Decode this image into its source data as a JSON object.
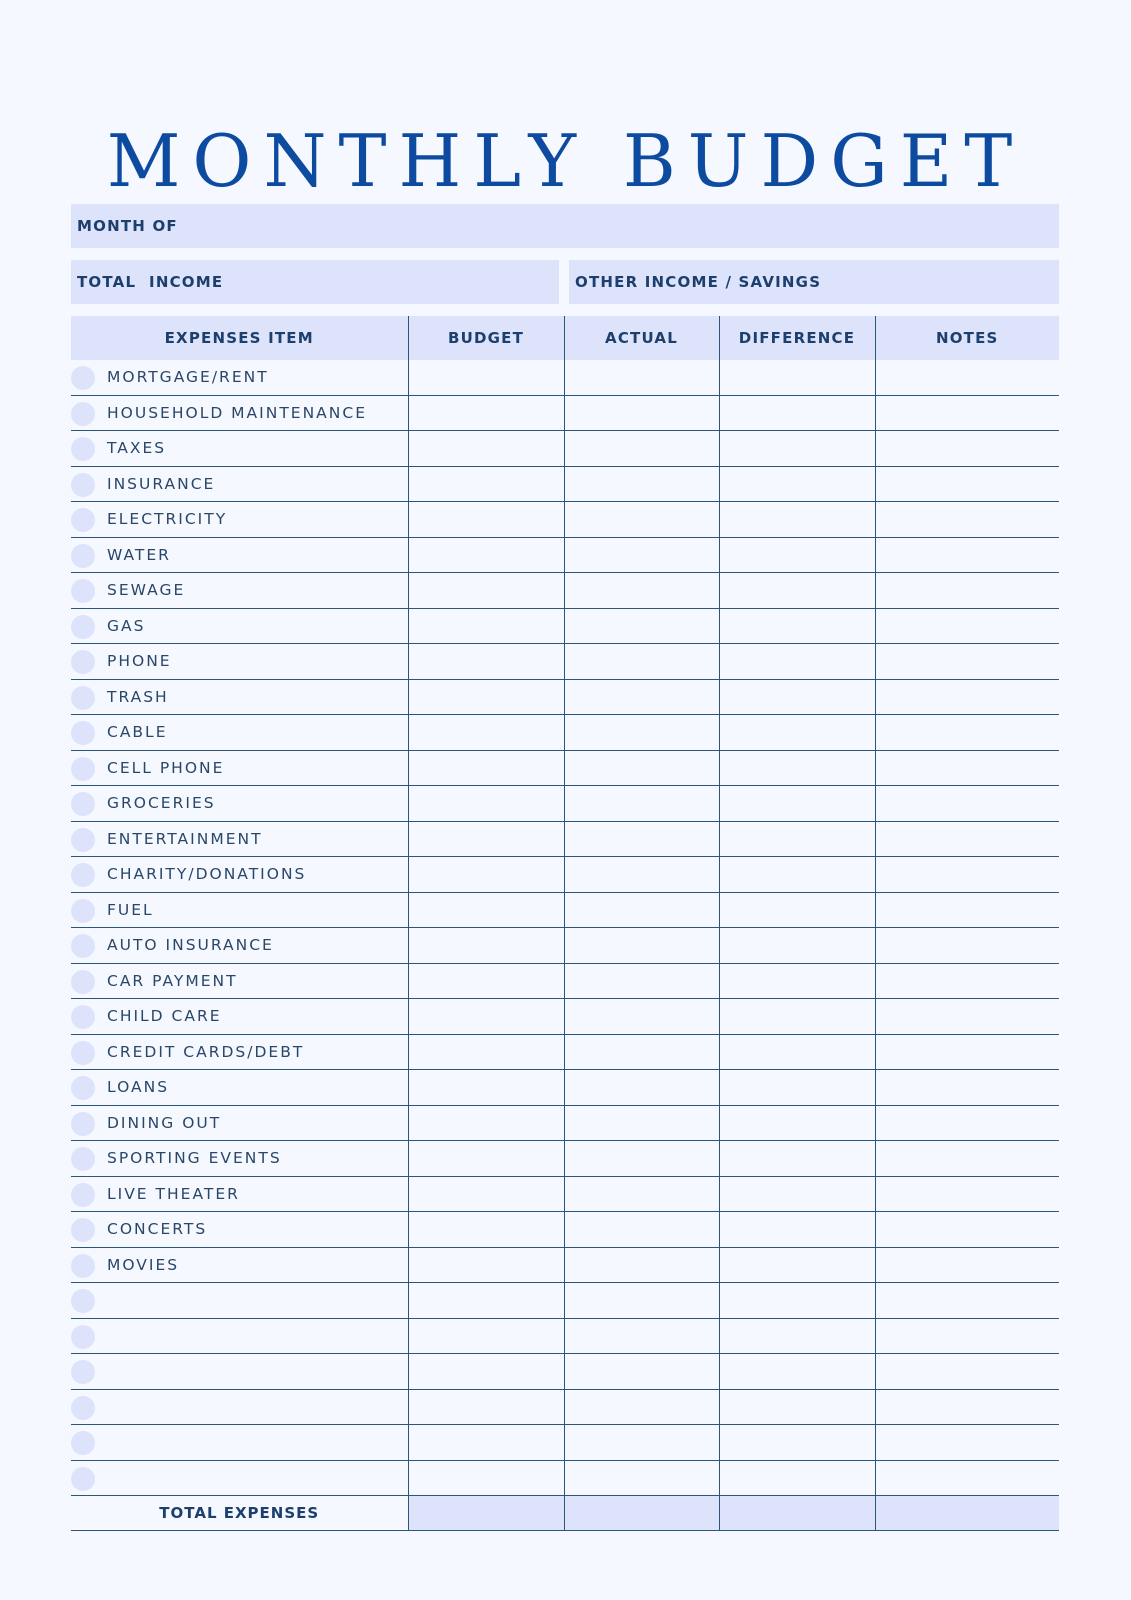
{
  "title": "MONTHLY BUDGET",
  "fields": {
    "month_of": "MONTH OF",
    "total_income": "TOTAL  INCOME",
    "other_income": "OTHER INCOME / SAVINGS"
  },
  "table": {
    "headers": [
      "EXPENSES ITEM",
      "BUDGET",
      "ACTUAL",
      "DIFFERENCE",
      "NOTES"
    ],
    "items": [
      "MORTGAGE/RENT",
      "HOUSEHOLD MAINTENANCE",
      "TAXES",
      "INSURANCE",
      "ELECTRICITY",
      "WATER",
      "SEWAGE",
      "GAS",
      "PHONE",
      "TRASH",
      "CABLE",
      "CELL PHONE",
      "GROCERIES",
      "ENTERTAINMENT",
      "CHARITY/DONATIONS",
      "FUEL",
      "AUTO INSURANCE",
      "CAR PAYMENT",
      "CHILD CARE",
      "CREDIT CARDS/DEBT",
      "LOANS",
      "DINING OUT",
      "SPORTING EVENTS",
      "LIVE THEATER",
      "CONCERTS",
      "MOVIES",
      "",
      "",
      "",
      "",
      "",
      ""
    ],
    "total_label": "TOTAL EXPENSES"
  },
  "colors": {
    "title": "#0d4ba0",
    "band": "#dde3fb",
    "background": "#f5f8fe",
    "lines": "#2d5578"
  }
}
